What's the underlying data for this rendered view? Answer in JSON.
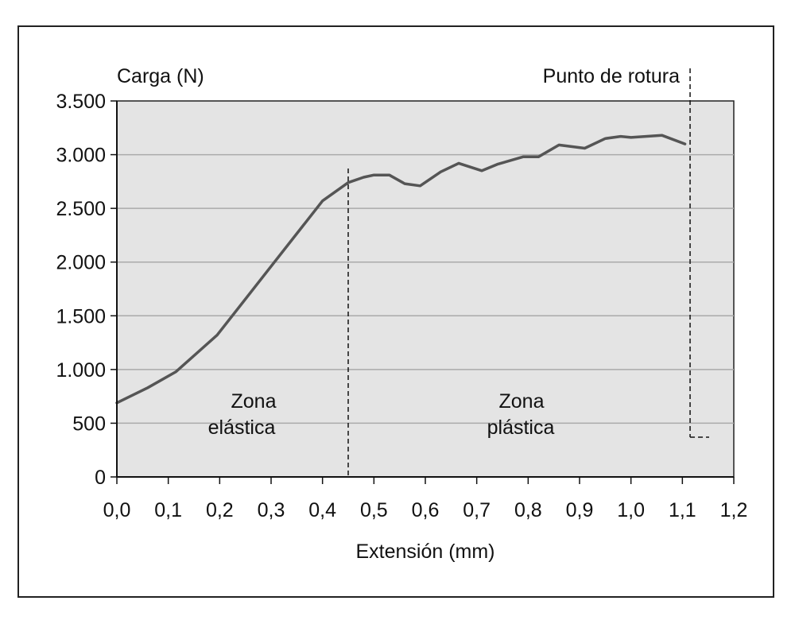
{
  "chart_data": {
    "type": "line",
    "ylabel": "Carga (N)",
    "xlabel": "Extensión (mm)",
    "xlim": [
      0,
      1.2
    ],
    "ylim": [
      0,
      3500
    ],
    "x_ticks": [
      0,
      0.1,
      0.2,
      0.3,
      0.4,
      0.5,
      0.6,
      0.7,
      0.8,
      0.9,
      1.0,
      1.1,
      1.2
    ],
    "x_tick_labels": [
      "0,0",
      "0,1",
      "0,2",
      "0,3",
      "0,4",
      "0,5",
      "0,6",
      "0,7",
      "0,8",
      "0,9",
      "1,0",
      "1,1",
      "1,2"
    ],
    "y_ticks": [
      0,
      500,
      1000,
      1500,
      2000,
      2500,
      3000,
      3500
    ],
    "y_tick_labels": [
      "0",
      "500",
      "1.000",
      "1.500",
      "2.000",
      "2.500",
      "3.000",
      "3.500"
    ],
    "grid": "horizontal",
    "colors": {
      "line": "#555555",
      "plot_bg": "#e4e4e4",
      "grid": "#aaaaaa"
    },
    "series": [
      {
        "x": [
          0.0,
          0.06,
          0.115,
          0.195,
          0.3,
          0.4,
          0.45,
          0.48,
          0.5,
          0.53,
          0.56,
          0.59,
          0.63,
          0.665,
          0.71,
          0.74,
          0.79,
          0.82,
          0.86,
          0.91,
          0.95,
          0.98,
          1.0,
          1.06,
          1.105
        ],
        "y": [
          690,
          830,
          980,
          1320,
          1960,
          2570,
          2740,
          2790,
          2810,
          2810,
          2730,
          2710,
          2840,
          2920,
          2850,
          2910,
          2980,
          2980,
          3090,
          3060,
          3150,
          3170,
          3160,
          3180,
          3100
        ]
      }
    ],
    "annotations": [
      {
        "text_lines": [
          "Zona",
          "elástica"
        ]
      },
      {
        "text_lines": [
          "Zona",
          "plástica"
        ]
      },
      {
        "text": "Punto de rotura"
      }
    ],
    "vlines": [
      0.45,
      1.115
    ]
  }
}
